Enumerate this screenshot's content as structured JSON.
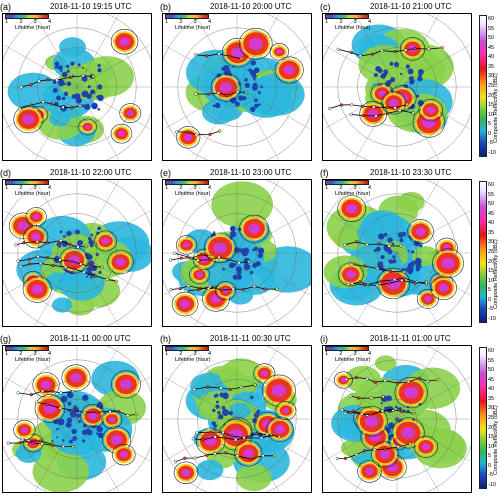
{
  "panels": [
    {
      "label": "(a)",
      "time": "2018-11-10 19:15 UTC",
      "legend": true
    },
    {
      "label": "(b)",
      "time": "2018-11-10 20:00 UTC",
      "legend": true
    },
    {
      "label": "(c)",
      "time": "2018-11-10 21:00 UTC",
      "legend": true
    },
    {
      "label": "(d)",
      "time": "2018-11-10 22:00 UTC",
      "legend": true
    },
    {
      "label": "(e)",
      "time": "2018-11-10 23:00 UTC",
      "legend": true
    },
    {
      "label": "(f)",
      "time": "2018-11-10 23:30 UTC",
      "legend": true
    },
    {
      "label": "(g)",
      "time": "2018-11-11 00:00 UTC",
      "legend": true
    },
    {
      "label": "(h)",
      "time": "2018-11-11 00:30 UTC",
      "legend": true
    },
    {
      "label": "(i)",
      "time": "2018-11-11 01:00 UTC",
      "legend": true
    }
  ],
  "lifetime_legend": {
    "title": "Lifetime (hour)",
    "ticks": [
      "1",
      "2",
      "3",
      "4"
    ]
  },
  "colorbar": {
    "title": "Composite Reflectivity (dBZ)",
    "ticks": [
      "60",
      "55",
      "50",
      "45",
      "40",
      "35",
      "30",
      "25",
      "20",
      "15",
      "10",
      "5",
      "0",
      "-5",
      "-10"
    ]
  },
  "colors": {
    "clear": "#ffffff",
    "weak": "#1b3fae",
    "light": "#2bb7df",
    "moderate": "#8bd14a",
    "strong": "#f5d01e",
    "heavy": "#ee3324",
    "extreme": "#d63ad6",
    "track": "#000000"
  }
}
